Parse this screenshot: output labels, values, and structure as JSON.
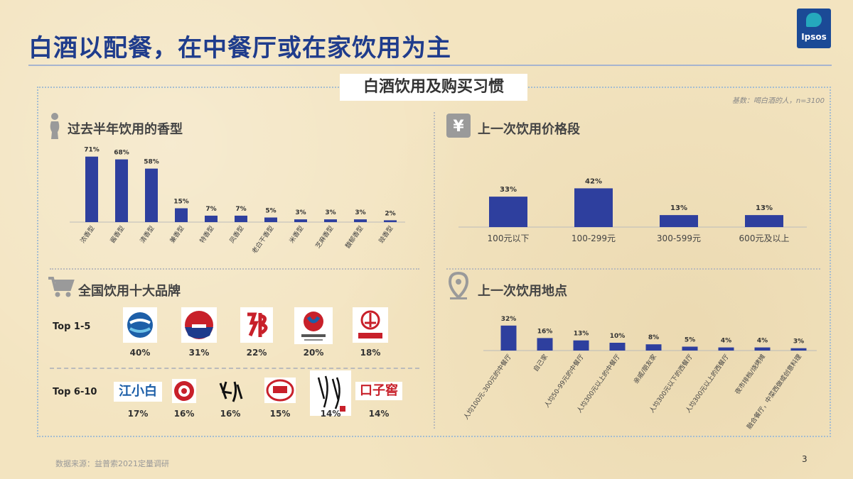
{
  "slide": {
    "title": "白酒以配餐，在中餐厅或在家饮用为主",
    "subtitle": "白酒饮用及购买习惯",
    "base_note": "基数：喝白酒的人，n=3100",
    "source": "数据来源：益普索2021定量调研",
    "page_number": "3",
    "logo_text": "Ipsos",
    "colors": {
      "bar": "#2e3f9e",
      "title": "#1f3c8c"
    }
  },
  "sections": {
    "aroma": {
      "title": "过去半年饮用的香型",
      "icon": "person-silhouette-icon"
    },
    "price": {
      "title": "上一次饮用价格段",
      "icon": "yen-icon"
    },
    "brands": {
      "title": "全国饮用十大品牌",
      "icon": "shopping-cart-icon"
    },
    "location": {
      "title": "上一次饮用地点",
      "icon": "location-pin-icon"
    }
  },
  "chart_data": [
    {
      "type": "bar",
      "categories": [
        "浓香型",
        "酱香型",
        "清香型",
        "兼香型",
        "特香型",
        "凤香型",
        "老白干香型",
        "米香型",
        "芝麻香型",
        "馥郁香型",
        "豉香型"
      ],
      "values": [
        71,
        68,
        58,
        15,
        7,
        7,
        5,
        3,
        3,
        3,
        2
      ],
      "labels": [
        "71%",
        "68%",
        "58%",
        "15%",
        "7%",
        "7%",
        "5%",
        "3%",
        "3%",
        "3%",
        "2%"
      ],
      "ylim": [
        0,
        100
      ]
    },
    {
      "type": "bar",
      "categories": [
        "100元以下",
        "100-299元",
        "300-599元",
        "600元及以上"
      ],
      "values": [
        33,
        42,
        13,
        13
      ],
      "labels": [
        "33%",
        "42%",
        "13%",
        "13%"
      ],
      "ylim": [
        0,
        100
      ]
    },
    {
      "type": "bar",
      "categories": [
        "人均100元-300元的中餐厅",
        "自己家",
        "人均50-99元的中餐厅",
        "人均300元以上的中餐厅",
        "亲戚/朋友家",
        "人均300元以下的西餐厅",
        "人均300元以上的西餐厅",
        "夜市排档/烧烤摊",
        "融合餐厅，中菜西做或创意料理"
      ],
      "values": [
        32,
        16,
        13,
        10,
        8,
        5,
        4,
        4,
        3
      ],
      "labels": [
        "32%",
        "16%",
        "13%",
        "10%",
        "8%",
        "5%",
        "4%",
        "4%",
        "3%"
      ],
      "ylim": [
        0,
        100
      ]
    }
  ],
  "brands": {
    "top1_5_label": "Top 1-5",
    "top6_10_label": "Top 6-10",
    "top1_5": [
      {
        "pct": "40%",
        "logo": "swirl-s-logo"
      },
      {
        "pct": "31%",
        "logo": "red-blue-emblem-logo"
      },
      {
        "pct": "22%",
        "logo": "lang-character-logo"
      },
      {
        "pct": "20%",
        "logo": "luzhou-laojiao-logo"
      },
      {
        "pct": "18%",
        "logo": "wuliangye-logo"
      }
    ],
    "top6_10": [
      {
        "pct": "17%",
        "logo": "jiangxiaobai-logo",
        "logo_text": "江小白"
      },
      {
        "pct": "16%",
        "logo": "red-flower-logo"
      },
      {
        "pct": "16%",
        "logo": "calligraphy-logo"
      },
      {
        "pct": "15%",
        "logo": "jiannanchun-logo"
      },
      {
        "pct": "14%",
        "logo": "calligraphy-seal-logo"
      },
      {
        "pct": "14%",
        "logo": "kouzijiao-logo",
        "logo_text": "口子窖"
      }
    ]
  }
}
